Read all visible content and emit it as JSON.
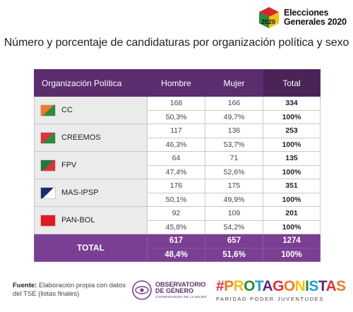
{
  "header": {
    "logo_year": "2020",
    "logo_line1": "Elecciones",
    "logo_line2": "Generales 2020"
  },
  "chart_data": {
    "type": "table",
    "title": "Número y porcentaje de candidaturas por organización política y sexo",
    "columns": [
      "Organización Política",
      "Hombre",
      "Mujer",
      "Total"
    ],
    "rows": [
      {
        "name": "CC",
        "hombre": "168",
        "mujer": "166",
        "total": "334",
        "hombre_pct": "50,3%",
        "mujer_pct": "49,7%",
        "total_pct": "100%",
        "flag_colors": [
          "#f07a2a",
          "#2e8b3a"
        ]
      },
      {
        "name": "CREEMOS",
        "hombre": "117",
        "mujer": "136",
        "total": "253",
        "hombre_pct": "46,3%",
        "mujer_pct": "53,7%",
        "total_pct": "100%",
        "flag_colors": [
          "#d9343a",
          "#2e8b3a"
        ]
      },
      {
        "name": "FPV",
        "hombre": "64",
        "mujer": "71",
        "total": "135",
        "hombre_pct": "47,4%",
        "mujer_pct": "52,6%",
        "total_pct": "100%",
        "flag_colors": [
          "#1f7a3a",
          "#d9343a"
        ]
      },
      {
        "name": "MAS-IPSP",
        "hombre": "176",
        "mujer": "175",
        "total": "351",
        "hombre_pct": "50,1%",
        "mujer_pct": "49,9%",
        "total_pct": "100%",
        "flag_colors": [
          "#1a2d6b",
          "#ffffff"
        ]
      },
      {
        "name": "PAN-BOL",
        "hombre": "92",
        "mujer": "109",
        "total": "201",
        "hombre_pct": "45,8%",
        "mujer_pct": "54,2%",
        "total_pct": "100%",
        "flag_colors": [
          "#e01b22",
          "#e01b22"
        ]
      }
    ],
    "total": {
      "label": "TOTAL",
      "hombre": "617",
      "mujer": "657",
      "total": "1274",
      "hombre_pct": "48,4%",
      "mujer_pct": "51,6%",
      "total_pct": "100%"
    }
  },
  "colors": {
    "header_purple": "#5b2d6f",
    "total_purple": "#7a3f92"
  },
  "footer": {
    "source_label": "Fuente:",
    "source_text": "Elaboración propia con datos del TSE (listas finales)",
    "obs_line1": "OBSERVATORIO",
    "obs_line2": "DE GÉNERO",
    "obs_sub": "COORDINADORA DE LA MUJER",
    "prot_main": "#PROTAGONISTAS",
    "prot_sub": "PARIDAD·PODER·JUVENTUDES"
  }
}
